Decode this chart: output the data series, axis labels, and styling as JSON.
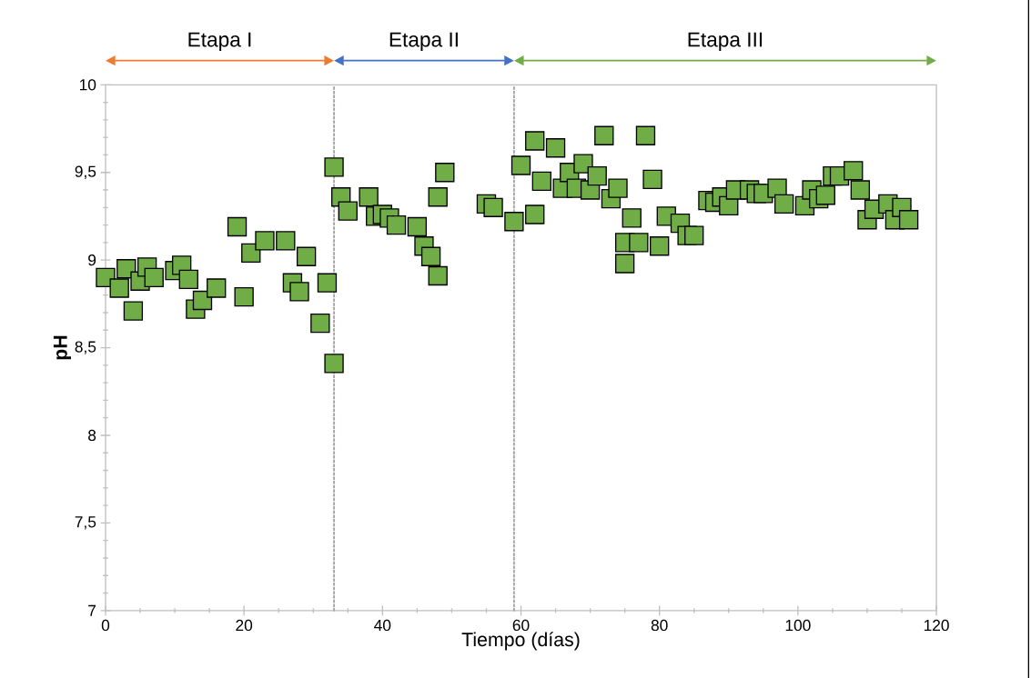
{
  "chart_data": {
    "type": "scatter",
    "xlabel": "Tiempo (días)",
    "ylabel": "pH",
    "x": [
      0,
      2,
      3,
      4,
      5,
      6,
      7,
      10,
      11,
      12,
      13,
      14,
      16,
      19,
      20,
      21,
      23,
      26,
      27,
      28,
      29,
      31,
      32,
      33,
      33,
      34,
      35,
      38,
      39,
      40,
      41,
      42,
      45,
      46,
      47,
      48,
      48,
      49,
      55,
      56,
      59,
      60,
      62,
      62,
      63,
      65,
      66,
      67,
      68,
      69,
      70,
      71,
      72,
      73,
      74,
      75,
      75,
      76,
      77,
      78,
      79,
      80,
      81,
      83,
      84,
      85,
      87,
      88,
      89,
      90,
      91,
      93,
      94,
      95,
      97,
      98,
      101,
      102,
      103,
      104,
      105,
      106,
      108,
      109,
      110,
      111,
      113,
      114,
      115,
      116
    ],
    "series": [
      {
        "color": "#70ad47",
        "values": [
          8.9,
          8.84,
          8.95,
          8.71,
          8.88,
          8.96,
          8.9,
          8.94,
          8.97,
          8.89,
          8.72,
          8.77,
          8.84,
          9.19,
          8.79,
          9.04,
          9.11,
          9.11,
          8.87,
          8.82,
          9.02,
          8.64,
          8.87,
          9.53,
          8.41,
          9.36,
          9.28,
          9.36,
          9.25,
          9.26,
          9.24,
          9.2,
          9.19,
          9.08,
          9.02,
          8.91,
          9.36,
          9.5,
          9.32,
          9.3,
          9.22,
          9.54,
          9.68,
          9.26,
          9.45,
          9.64,
          9.41,
          9.5,
          9.41,
          9.55,
          9.4,
          9.48,
          9.71,
          9.35,
          9.41,
          9.1,
          8.98,
          9.24,
          9.1,
          9.71,
          9.46,
          9.08,
          9.25,
          9.21,
          9.14,
          9.14,
          9.34,
          9.33,
          9.36,
          9.31,
          9.4,
          9.4,
          9.38,
          9.38,
          9.41,
          9.32,
          9.31,
          9.4,
          9.35,
          9.37,
          9.48,
          9.48,
          9.51,
          9.4,
          9.23,
          9.29,
          9.32,
          9.23,
          9.3,
          9.23
        ]
      }
    ],
    "marker": "square",
    "grid": false,
    "xlim": [
      0,
      120
    ],
    "xticks": [
      0,
      20,
      40,
      60,
      80,
      100,
      120
    ],
    "ylim": [
      7,
      10
    ],
    "yticks": [
      7,
      {
        "value": 7.5,
        "label": "7,5"
      },
      8,
      {
        "value": 8.5,
        "label": "8,5"
      },
      9,
      {
        "value": 9.5,
        "label": "9,5"
      },
      10
    ],
    "ref_lines": [
      {
        "axis": "x",
        "value": 33,
        "color": "#a6a6a6",
        "line_style": "dotted"
      },
      {
        "axis": "x",
        "value": 59,
        "color": "#a6a6a6",
        "line_style": "dotted"
      }
    ],
    "annotations": [
      "Etapa I",
      "Etapa II",
      "Etapa III"
    ]
  }
}
